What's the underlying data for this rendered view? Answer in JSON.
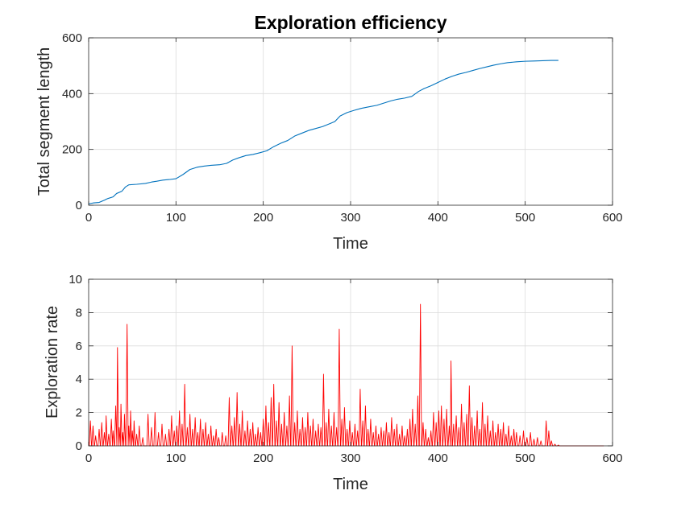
{
  "chart_data": [
    {
      "type": "line",
      "title": "Exploration efficiency",
      "xlabel": "Time",
      "ylabel": "Total segment length",
      "xlim": [
        0,
        600
      ],
      "ylim": [
        0,
        600
      ],
      "xticks": [
        0,
        100,
        200,
        300,
        400,
        500,
        600
      ],
      "yticks": [
        0,
        200,
        400,
        600
      ],
      "grid": true,
      "series": [
        {
          "color": "#0072BD",
          "x": [
            0,
            5,
            12,
            18,
            22,
            28,
            32,
            38,
            42,
            46,
            55,
            65,
            72,
            78,
            85,
            92,
            100,
            108,
            116,
            124,
            132,
            140,
            150,
            158,
            165,
            172,
            180,
            188,
            196,
            204,
            212,
            220,
            228,
            236,
            244,
            252,
            260,
            268,
            276,
            282,
            288,
            296,
            304,
            312,
            320,
            330,
            338,
            346,
            354,
            362,
            370,
            378,
            384,
            392,
            400,
            408,
            416,
            424,
            432,
            440,
            448,
            456,
            464,
            472,
            480,
            490,
            500,
            510,
            520,
            530,
            538
          ],
          "y": [
            5,
            8,
            10,
            18,
            24,
            30,
            42,
            50,
            65,
            73,
            75,
            78,
            83,
            86,
            90,
            92,
            95,
            110,
            128,
            136,
            140,
            143,
            145,
            150,
            162,
            170,
            178,
            182,
            188,
            195,
            210,
            222,
            232,
            248,
            258,
            268,
            275,
            282,
            292,
            300,
            320,
            332,
            340,
            347,
            352,
            358,
            366,
            374,
            380,
            384,
            390,
            408,
            418,
            428,
            440,
            452,
            462,
            470,
            476,
            483,
            490,
            496,
            502,
            507,
            511,
            514,
            516,
            517,
            518,
            519,
            519
          ]
        }
      ]
    },
    {
      "type": "line",
      "title": "",
      "xlabel": "Time",
      "ylabel": "Exploration rate",
      "xlim": [
        0,
        600
      ],
      "ylim": [
        0,
        10
      ],
      "xticks": [
        0,
        100,
        200,
        300,
        400,
        500,
        600
      ],
      "yticks": [
        0,
        2,
        4,
        6,
        8,
        10
      ],
      "grid": true,
      "series": [
        {
          "color": "#FF0000",
          "spikes": [
            [
              2,
              1.5
            ],
            [
              5,
              1.2
            ],
            [
              8,
              0.6
            ],
            [
              12,
              1.0
            ],
            [
              15,
              1.4
            ],
            [
              18,
              0.8
            ],
            [
              20,
              1.8
            ],
            [
              23,
              0.7
            ],
            [
              26,
              1.6
            ],
            [
              28,
              0.9
            ],
            [
              31,
              2.4
            ],
            [
              33,
              5.9
            ],
            [
              35,
              1.1
            ],
            [
              37,
              2.5
            ],
            [
              39,
              0.8
            ],
            [
              41,
              1.9
            ],
            [
              44,
              7.3
            ],
            [
              46,
              1.2
            ],
            [
              48,
              2.1
            ],
            [
              50,
              0.9
            ],
            [
              52,
              1.5
            ],
            [
              55,
              0.7
            ],
            [
              58,
              1.2
            ],
            [
              62,
              0.5
            ],
            [
              68,
              1.9
            ],
            [
              72,
              1.1
            ],
            [
              76,
              2.0
            ],
            [
              80,
              0.8
            ],
            [
              84,
              1.3
            ],
            [
              88,
              0.7
            ],
            [
              92,
              1.0
            ],
            [
              95,
              1.8
            ],
            [
              98,
              0.9
            ],
            [
              101,
              1.2
            ],
            [
              104,
              2.1
            ],
            [
              107,
              1.3
            ],
            [
              110,
              3.7
            ],
            [
              113,
              1.1
            ],
            [
              116,
              1.9
            ],
            [
              119,
              1.0
            ],
            [
              122,
              1.7
            ],
            [
              125,
              0.8
            ],
            [
              128,
              1.6
            ],
            [
              131,
              1.0
            ],
            [
              134,
              1.4
            ],
            [
              137,
              0.7
            ],
            [
              140,
              1.2
            ],
            [
              143,
              0.6
            ],
            [
              146,
              1.0
            ],
            [
              149,
              0.5
            ],
            [
              153,
              0.8
            ],
            [
              157,
              0.6
            ],
            [
              161,
              2.9
            ],
            [
              164,
              1.2
            ],
            [
              167,
              1.7
            ],
            [
              170,
              3.2
            ],
            [
              173,
              1.3
            ],
            [
              176,
              2.1
            ],
            [
              179,
              0.9
            ],
            [
              182,
              1.5
            ],
            [
              185,
              1.0
            ],
            [
              188,
              1.4
            ],
            [
              191,
              0.7
            ],
            [
              194,
              1.1
            ],
            [
              197,
              0.8
            ],
            [
              200,
              1.6
            ],
            [
              203,
              2.4
            ],
            [
              206,
              1.4
            ],
            [
              209,
              2.9
            ],
            [
              212,
              3.7
            ],
            [
              215,
              1.5
            ],
            [
              218,
              2.6
            ],
            [
              221,
              1.3
            ],
            [
              224,
              2.0
            ],
            [
              227,
              1.2
            ],
            [
              230,
              3.0
            ],
            [
              233,
              6.0
            ],
            [
              236,
              1.4
            ],
            [
              239,
              2.1
            ],
            [
              242,
              1.0
            ],
            [
              245,
              1.7
            ],
            [
              248,
              1.1
            ],
            [
              251,
              2.0
            ],
            [
              254,
              1.2
            ],
            [
              257,
              1.6
            ],
            [
              260,
              0.9
            ],
            [
              263,
              1.3
            ],
            [
              266,
              1.1
            ],
            [
              269,
              4.3
            ],
            [
              272,
              1.4
            ],
            [
              275,
              2.2
            ],
            [
              278,
              1.2
            ],
            [
              281,
              2.0
            ],
            [
              284,
              1.1
            ],
            [
              287,
              7.0
            ],
            [
              290,
              1.6
            ],
            [
              293,
              2.3
            ],
            [
              296,
              1.0
            ],
            [
              299,
              1.5
            ],
            [
              302,
              0.8
            ],
            [
              305,
              1.3
            ],
            [
              308,
              0.9
            ],
            [
              311,
              3.4
            ],
            [
              314,
              1.5
            ],
            [
              317,
              2.4
            ],
            [
              320,
              1.0
            ],
            [
              323,
              1.6
            ],
            [
              326,
              0.8
            ],
            [
              329,
              1.2
            ],
            [
              332,
              0.7
            ],
            [
              335,
              1.1
            ],
            [
              338,
              0.9
            ],
            [
              341,
              1.4
            ],
            [
              344,
              0.8
            ],
            [
              347,
              1.7
            ],
            [
              350,
              1.0
            ],
            [
              353,
              1.3
            ],
            [
              356,
              0.7
            ],
            [
              359,
              1.2
            ],
            [
              362,
              0.6
            ],
            [
              365,
              1.0
            ],
            [
              368,
              1.6
            ],
            [
              371,
              2.2
            ],
            [
              374,
              1.3
            ],
            [
              377,
              3.0
            ],
            [
              380,
              8.5
            ],
            [
              383,
              1.4
            ],
            [
              386,
              1.0
            ],
            [
              389,
              0.5
            ],
            [
              392,
              0.9
            ],
            [
              395,
              2.0
            ],
            [
              398,
              1.4
            ],
            [
              401,
              2.1
            ],
            [
              404,
              2.4
            ],
            [
              407,
              1.6
            ],
            [
              410,
              2.2
            ],
            [
              413,
              1.2
            ],
            [
              415,
              5.1
            ],
            [
              418,
              1.3
            ],
            [
              421,
              1.8
            ],
            [
              424,
              1.1
            ],
            [
              427,
              2.5
            ],
            [
              430,
              1.4
            ],
            [
              433,
              1.9
            ],
            [
              436,
              3.6
            ],
            [
              439,
              1.7
            ],
            [
              442,
              1.2
            ],
            [
              445,
              2.1
            ],
            [
              448,
              1.0
            ],
            [
              451,
              2.6
            ],
            [
              454,
              1.3
            ],
            [
              457,
              1.8
            ],
            [
              460,
              0.9
            ],
            [
              463,
              1.5
            ],
            [
              466,
              0.8
            ],
            [
              469,
              1.3
            ],
            [
              472,
              1.0
            ],
            [
              475,
              1.4
            ],
            [
              478,
              0.7
            ],
            [
              481,
              1.2
            ],
            [
              484,
              0.6
            ],
            [
              487,
              1.0
            ],
            [
              490,
              0.8
            ],
            [
              494,
              0.6
            ],
            [
              498,
              0.9
            ],
            [
              502,
              0.5
            ],
            [
              506,
              0.8
            ],
            [
              510,
              0.4
            ],
            [
              514,
              0.5
            ],
            [
              518,
              0.3
            ],
            [
              524,
              1.5
            ],
            [
              527,
              0.9
            ],
            [
              530,
              0.3
            ],
            [
              534,
              0.1
            ],
            [
              538,
              0.05
            ]
          ]
        }
      ]
    }
  ]
}
